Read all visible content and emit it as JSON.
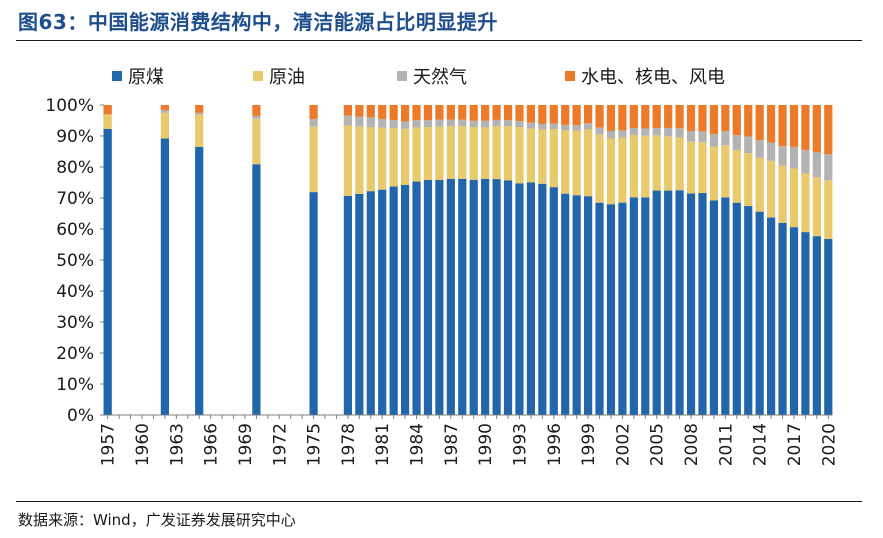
{
  "header": {
    "title": "图63：中国能源消费结构中，清洁能源占比明显提升"
  },
  "footer": {
    "source": "数据来源：Wind，广发证券发展研究中心"
  },
  "colors": {
    "coal": "#2166ab",
    "oil": "#e8c96b",
    "gas": "#b3b3b3",
    "clean": "#ec7a29"
  },
  "chart_data": {
    "type": "bar",
    "stacked": true,
    "title": "中国能源消费结构中，清洁能源占比明显提升",
    "xlabel": "",
    "ylabel": "",
    "ylim": [
      0,
      100
    ],
    "y_ticks": [
      "100%",
      "90%",
      "80%",
      "70%",
      "60%",
      "50%",
      "40%",
      "30%",
      "20%",
      "10%",
      "0%"
    ],
    "x_tick_labels": [
      "1957",
      "1960",
      "1963",
      "1966",
      "1969",
      "1972",
      "1975",
      "1978",
      "1981",
      "1984",
      "1987",
      "1990",
      "1993",
      "1996",
      "1999",
      "2002",
      "2005",
      "2008",
      "2011",
      "2014",
      "2017",
      "2020"
    ],
    "legend_position": "top",
    "categories": [
      1957,
      1962,
      1965,
      1970,
      1975,
      1978,
      1979,
      1980,
      1981,
      1982,
      1983,
      1984,
      1985,
      1986,
      1987,
      1988,
      1989,
      1990,
      1991,
      1992,
      1993,
      1994,
      1995,
      1996,
      1997,
      1998,
      1999,
      2000,
      2001,
      2002,
      2003,
      2004,
      2005,
      2006,
      2007,
      2008,
      2009,
      2010,
      2011,
      2012,
      2013,
      2014,
      2015,
      2016,
      2017,
      2018,
      2019,
      2020
    ],
    "series": [
      {
        "name": "原煤",
        "key": "coal",
        "values": [
          92.3,
          89.2,
          86.5,
          80.9,
          71.9,
          70.7,
          71.3,
          72.2,
          72.7,
          73.7,
          74.2,
          75.3,
          75.8,
          75.8,
          76.2,
          76.2,
          75.8,
          76.2,
          76.1,
          75.7,
          74.7,
          75.0,
          74.6,
          73.5,
          71.4,
          70.9,
          70.6,
          68.5,
          68.0,
          68.5,
          70.2,
          70.2,
          72.4,
          72.4,
          72.5,
          71.5,
          71.6,
          69.2,
          70.2,
          68.5,
          67.4,
          65.6,
          63.7,
          62.0,
          60.6,
          59.0,
          57.7,
          56.8
        ]
      },
      {
        "name": "原油",
        "key": "oil",
        "values": [
          4.6,
          8.3,
          10.4,
          14.7,
          21.1,
          22.7,
          21.8,
          20.7,
          20.0,
          18.9,
          18.1,
          17.4,
          17.1,
          17.2,
          17.0,
          17.0,
          17.1,
          16.6,
          17.1,
          17.5,
          18.2,
          17.4,
          17.5,
          18.7,
          20.4,
          20.8,
          21.5,
          22.0,
          21.2,
          21.0,
          20.1,
          19.9,
          17.8,
          17.5,
          17.0,
          16.7,
          16.4,
          17.4,
          16.8,
          17.0,
          17.1,
          17.4,
          18.3,
          18.5,
          18.9,
          18.9,
          19.0,
          18.9
        ]
      },
      {
        "name": "天然气",
        "key": "gas",
        "values": [
          0.1,
          0.9,
          0.6,
          0.9,
          2.5,
          3.2,
          3.1,
          3.1,
          2.8,
          2.5,
          2.4,
          2.4,
          2.2,
          2.3,
          2.1,
          2.1,
          2.0,
          2.1,
          2.0,
          1.9,
          1.9,
          1.9,
          1.8,
          1.8,
          1.8,
          1.8,
          2.0,
          2.2,
          2.4,
          2.3,
          2.3,
          2.3,
          2.4,
          2.7,
          3.0,
          3.4,
          3.5,
          4.0,
          4.6,
          4.8,
          5.3,
          5.7,
          5.9,
          6.2,
          7.0,
          7.6,
          8.0,
          8.4
        ]
      },
      {
        "name": "水电、核电、风电",
        "key": "clean",
        "values": [
          3.0,
          1.6,
          2.5,
          3.5,
          4.5,
          3.4,
          3.8,
          4.0,
          4.5,
          4.9,
          5.3,
          4.9,
          4.9,
          4.7,
          4.7,
          4.7,
          5.1,
          5.1,
          4.8,
          4.9,
          5.2,
          5.7,
          6.1,
          6.0,
          6.4,
          6.5,
          5.9,
          7.3,
          8.4,
          8.2,
          7.4,
          7.6,
          7.4,
          7.4,
          7.5,
          8.4,
          8.5,
          9.4,
          8.4,
          9.7,
          10.2,
          11.3,
          12.1,
          13.3,
          13.5,
          14.5,
          15.3,
          15.9
        ]
      }
    ]
  }
}
